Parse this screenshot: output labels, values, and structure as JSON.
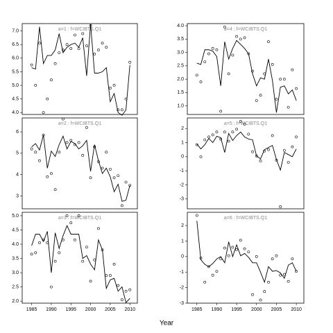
{
  "xlabel": "Year",
  "chart_data": [
    {
      "type": "scatter",
      "title": "a=1 : f=WCIBTS.Q1",
      "color": "#000000",
      "x": [
        1985,
        1986,
        1987,
        1988,
        1989,
        1990,
        1991,
        1992,
        1993,
        1994,
        1995,
        1996,
        1997,
        1998,
        1999,
        2000,
        2001,
        2002,
        2003,
        2004,
        2005,
        2006,
        2007,
        2008,
        2009,
        2010
      ],
      "values": [
        5.75,
        5.0,
        6.55,
        4.0,
        4.5,
        5.2,
        5.8,
        6.2,
        6.3,
        6.5,
        6.35,
        6.85,
        6.35,
        6.9,
        6.45,
        7.2,
        6.15,
        6.3,
        6.55,
        6.4,
        4.9,
        5.0,
        4.1,
        4.1,
        4.5,
        5.85
      ],
      "fit": [
        5.65,
        5.6,
        7.15,
        5.8,
        6.1,
        6.1,
        6.3,
        6.9,
        6.2,
        6.4,
        6.5,
        6.55,
        6.4,
        6.75,
        5.35,
        7.25,
        5.45,
        5.45,
        5.5,
        5.65,
        4.4,
        4.7,
        4.0,
        3.9,
        4.1,
        5.75
      ],
      "xlim": [
        1982.6,
        2011.9
      ],
      "ylim": [
        3.93,
        7.27
      ],
      "yticks": [
        {
          "value": 4,
          "label": "4.0"
        },
        4.5,
        {
          "value": 5,
          "label": "5.0"
        },
        5.5,
        {
          "value": 6,
          "label": "6.0"
        },
        6.5,
        {
          "value": 7,
          "label": "7.0"
        }
      ]
    },
    {
      "type": "scatter",
      "title": "a=2 : f=WCIBTS.Q1",
      "color": "#000000",
      "x": [
        1985,
        1986,
        1987,
        1988,
        1989,
        1990,
        1991,
        1992,
        1993,
        1994,
        1995,
        1996,
        1997,
        1998,
        1999,
        2000,
        2001,
        2002,
        2003,
        2004,
        2005,
        2006,
        2007,
        2008,
        2009,
        2010
      ],
      "values": [
        5.2,
        5.05,
        4.65,
        5.85,
        3.9,
        4.05,
        3.3,
        5.05,
        6.6,
        5.5,
        5.6,
        5.4,
        5.5,
        4.9,
        6.2,
        3.85,
        5.3,
        4.6,
        4.3,
        5.05,
        4.25,
        3.85,
        3.95,
        2.55,
        3.65,
        3.5
      ],
      "fit": [
        5.3,
        5.45,
        5.15,
        5.85,
        4.3,
        5.1,
        4.85,
        5.4,
        5.8,
        5.2,
        5.55,
        5.45,
        5.2,
        5.35,
        5.6,
        4.15,
        5.4,
        4.65,
        4.05,
        4.3,
        3.9,
        3.2,
        3.55,
        2.75,
        2.8,
        3.5
      ],
      "xlim": [
        1982.6,
        2011.9
      ],
      "ylim": [
        2.4,
        6.65
      ],
      "yticks": [
        3,
        4,
        5,
        6
      ]
    },
    {
      "type": "scatter",
      "title": "a=3 : f=WCIBTS.Q1",
      "color": "#000000",
      "x": [
        1985,
        1986,
        1987,
        1988,
        1989,
        1990,
        1991,
        1992,
        1993,
        1994,
        1995,
        1996,
        1997,
        1998,
        1999,
        2000,
        2001,
        2002,
        2003,
        2004,
        2005,
        2006,
        2007,
        2008,
        2009,
        2010
      ],
      "values": [
        3.65,
        3.7,
        4.05,
        4.15,
        4.05,
        2.5,
        3.4,
        3.7,
        4.15,
        5.0,
        4.75,
        4.15,
        5.0,
        3.4,
        3.9,
        2.7,
        3.45,
        4.55,
        3.8,
        2.9,
        2.9,
        3.3,
        2.55,
        2.05,
        2.35,
        2.4
      ],
      "fit": [
        3.95,
        4.35,
        4.35,
        4.1,
        4.45,
        3.0,
        4.4,
        3.85,
        4.3,
        4.65,
        4.35,
        4.35,
        4.35,
        3.5,
        3.6,
        3.3,
        3.1,
        4.15,
        3.8,
        2.45,
        2.75,
        2.8,
        2.35,
        2.5,
        1.95,
        2.1
      ],
      "xlim": [
        1982.6,
        2011.9
      ],
      "ylim": [
        1.93,
        5.12
      ],
      "xticks": [
        1985,
        1990,
        1995,
        2000,
        2005,
        2010
      ],
      "yticks": [
        {
          "value": 2,
          "label": "2.0"
        },
        2.5,
        {
          "value": 3,
          "label": "3.0"
        },
        3.5,
        {
          "value": 4,
          "label": "4.0"
        },
        4.5,
        {
          "value": 5,
          "label": "5.0"
        }
      ]
    },
    {
      "type": "scatter",
      "title": "a=4 : f=WCIBTS.Q1",
      "color": "#000000",
      "x": [
        1985,
        1986,
        1987,
        1988,
        1989,
        1990,
        1991,
        1992,
        1993,
        1994,
        1995,
        1996,
        1997,
        1998,
        1999,
        2000,
        2001,
        2002,
        2003,
        2004,
        2005,
        2006,
        2007,
        2008,
        2009,
        2010
      ],
      "values": [
        2.15,
        1.9,
        2.65,
        2.95,
        3.15,
        3.1,
        0.8,
        3.95,
        2.2,
        2.9,
        3.6,
        3.5,
        3.55,
        2.95,
        2.3,
        1.2,
        1.4,
        2.2,
        3.4,
        2.55,
        1.25,
        2.0,
        2.0,
        0.95,
        2.35,
        1.65
      ],
      "fit": [
        2.6,
        2.55,
        3.1,
        3.1,
        3.05,
        2.85,
        1.75,
        3.4,
        2.75,
        3.15,
        3.45,
        3.3,
        3.15,
        2.95,
        2.2,
        1.75,
        2.05,
        2.0,
        2.75,
        1.95,
        0.75,
        1.7,
        1.75,
        1.45,
        1.6,
        1.2
      ],
      "xlim": [
        1982.6,
        2011.9
      ],
      "ylim": [
        0.68,
        4.08
      ],
      "yticks": [
        {
          "value": 1,
          "label": "1.0"
        },
        1.5,
        {
          "value": 2,
          "label": "2.0"
        },
        2.5,
        {
          "value": 3,
          "label": "3.0"
        },
        3.5,
        {
          "value": 4,
          "label": "4.0"
        }
      ]
    },
    {
      "type": "scatter",
      "title": "a=5 : f=WCIBTS.Q1",
      "color": "#000000",
      "x": [
        1985,
        1986,
        1987,
        1988,
        1989,
        1990,
        1991,
        1992,
        1993,
        1994,
        1995,
        1996,
        1997,
        1998,
        1999,
        2000,
        2001,
        2002,
        2003,
        2004,
        2005,
        2006,
        2007,
        2008,
        2009,
        2010
      ],
      "values": [
        0.85,
        0.0,
        1.2,
        1.4,
        1.55,
        1.75,
        1.25,
        1.75,
        1.1,
        1.75,
        1.95,
        2.5,
        2.3,
        1.6,
        0.35,
        0.05,
        -0.3,
        0.4,
        0.5,
        1.5,
        -0.25,
        -3.55,
        0.45,
        -0.4,
        0.7,
        1.4
      ],
      "fit": [
        0.9,
        0.55,
        0.85,
        1.3,
        1.0,
        1.45,
        1.35,
        0.3,
        1.65,
        1.15,
        1.5,
        1.75,
        1.4,
        1.25,
        1.2,
        0.05,
        -0.15,
        0.5,
        0.65,
        0.8,
        -0.2,
        -0.95,
        0.3,
        0.15,
        0.0,
        0.55
      ],
      "xlim": [
        1982.6,
        2011.9
      ],
      "ylim": [
        -3.7,
        2.75
      ],
      "yticks": [
        -3,
        -2,
        -1,
        0,
        1,
        2
      ]
    },
    {
      "type": "scatter",
      "title": "a=6 : f=WCIBTS.Q1",
      "color": "#000000",
      "x": [
        1985,
        1986,
        1987,
        1988,
        1989,
        1990,
        1991,
        1992,
        1993,
        1994,
        1995,
        1996,
        1997,
        1998,
        1999,
        2000,
        2001,
        2002,
        2003,
        2004,
        2005,
        2006,
        2007,
        2008,
        2009,
        2010
      ],
      "values": [
        2.65,
        -0.1,
        -1.65,
        -0.65,
        -1.2,
        -0.95,
        -0.15,
        0.55,
        0.05,
        0.6,
        0.45,
        1.05,
        0.5,
        0.3,
        -2.45,
        0.0,
        -2.8,
        -2.25,
        -1.65,
        -0.15,
        0.05,
        -1.2,
        -1.15,
        -1.6,
        -0.15,
        -0.95
      ],
      "fit": [
        2.3,
        -0.2,
        -0.5,
        -0.65,
        -0.45,
        -0.15,
        0.0,
        -0.4,
        0.95,
        0.0,
        0.75,
        0.05,
        0.2,
        -0.05,
        -0.4,
        -0.4,
        -1.0,
        -1.65,
        -0.65,
        -0.95,
        -0.9,
        -1.05,
        -1.4,
        -0.55,
        -0.4,
        -0.95
      ],
      "xlim": [
        1982.6,
        2011.9
      ],
      "ylim": [
        -3.0,
        2.85
      ],
      "xticks": [
        1985,
        1990,
        1995,
        2000,
        2005,
        2010
      ],
      "yticks": [
        -3,
        -2,
        -1,
        0,
        1,
        2
      ]
    }
  ]
}
